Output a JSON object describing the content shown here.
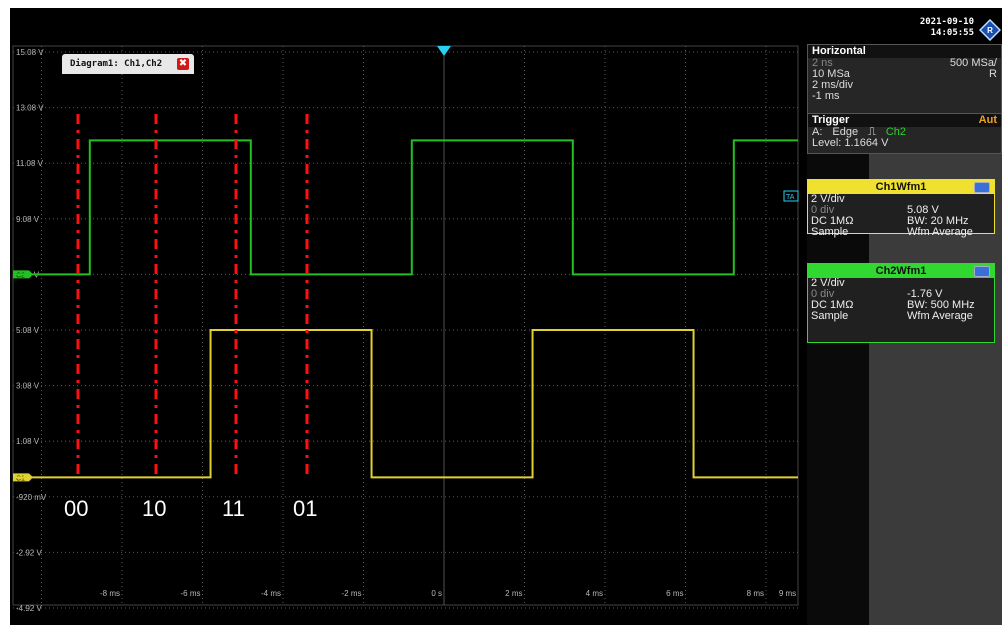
{
  "datetime": {
    "date": "2021-09-10",
    "time": "14:05:55"
  },
  "diagram_tab": {
    "label": "Diagram1: Ch1,Ch2",
    "close": "✖"
  },
  "y_axis_labels": [
    "15.08 V",
    "13.08 V",
    "11.08 V",
    "9.08 V",
    "7.08 V",
    "5.08 V",
    "3.08 V",
    "1.08 V",
    "-920 mV",
    "-2.92 V",
    "-4.92 V"
  ],
  "x_axis_labels": [
    "-8 ms",
    "-6 ms",
    "-4 ms",
    "-2 ms",
    "0 s",
    "2 ms",
    "4 ms",
    "6 ms",
    "8 ms",
    "9 ms"
  ],
  "channel_markers": {
    "ch1": "C1",
    "ch2": "C2",
    "trigger": "TA"
  },
  "state_labels": [
    "00",
    "10",
    "11",
    "01"
  ],
  "horizontal": {
    "title": "Horizontal",
    "rows": [
      {
        "left": "2 ns",
        "right": "500 MSa/"
      },
      {
        "left": "10 MSa",
        "right": "R"
      },
      {
        "left": "2 ms/div",
        "right": ""
      },
      {
        "left": "-1 ms",
        "right": ""
      }
    ]
  },
  "trigger": {
    "title": "Trigger",
    "mode": "Aut",
    "source_prefix": "A:",
    "type": "Edge",
    "source": "Ch2",
    "level": "Level: 1.1664 V"
  },
  "ch1": {
    "title": "Ch1Wfm1",
    "scale": "2 V/div",
    "offset": "0 div",
    "position": "5.08 V",
    "coupling": "DC 1MΩ",
    "bandwidth": "BW: 20 MHz",
    "acq": "Sample",
    "wfm": "Wfm Average"
  },
  "ch2": {
    "title": "Ch2Wfm1",
    "scale": "2 V/div",
    "offset": "0 div",
    "position": "-1.76 V",
    "coupling": "DC 1MΩ",
    "bandwidth": "BW: 500 MHz",
    "acq": "Sample",
    "wfm": "Wfm Average"
  },
  "colors": {
    "ch1": "#e0d030",
    "ch2": "#22c022",
    "ch1_header": "#f0e030",
    "ch2_header": "#30d830",
    "marker": "#ff1010",
    "trigger_marker": "#2ad0f0",
    "grid": "#5a5a5a"
  },
  "waveforms": {
    "ch1_logic": [
      0,
      0,
      1,
      1,
      0,
      0,
      1,
      1,
      0,
      0
    ],
    "ch2_logic": [
      0,
      1,
      1,
      0,
      0,
      1,
      1,
      0,
      0,
      1
    ]
  }
}
